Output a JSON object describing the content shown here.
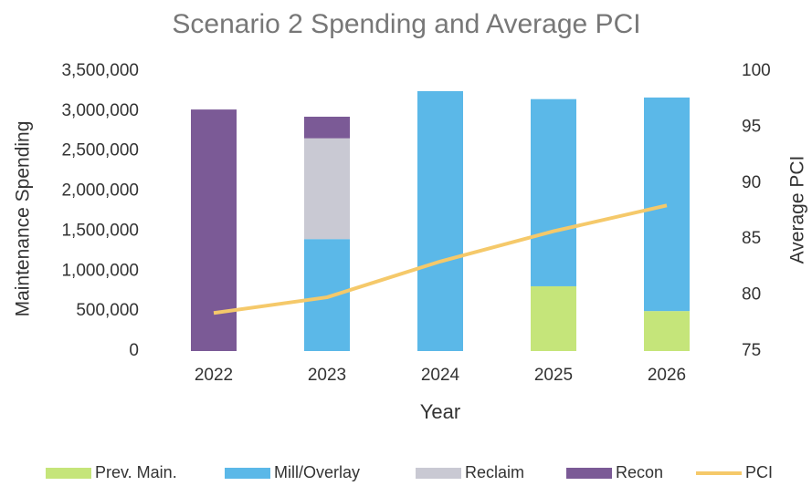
{
  "chart_data": {
    "type": "bar",
    "stacked": true,
    "title": "Scenario 2 Spending and Average PCI",
    "x_label": "Year",
    "y_label": "Maintenance Spending",
    "y2_label": "Average PCI",
    "categories": [
      "2022",
      "2023",
      "2024",
      "2025",
      "2026"
    ],
    "series": [
      {
        "name": "Prev. Main.",
        "color": "#c5e57a",
        "values": [
          0,
          0,
          0,
          810000,
          500000
        ]
      },
      {
        "name": "Mill/Overlay",
        "color": "#5bb8e8",
        "values": [
          0,
          1400000,
          3250000,
          2340000,
          2670000
        ]
      },
      {
        "name": "Reclaim",
        "color": "#c9c9d3",
        "values": [
          0,
          1260000,
          0,
          0,
          0
        ]
      },
      {
        "name": "Recon",
        "color": "#7b5a96",
        "values": [
          3020000,
          270000,
          0,
          0,
          0
        ]
      },
      {
        "name": "PCI",
        "color": "#f5c96a",
        "type": "line",
        "axis": "y2",
        "values": [
          78.4,
          79.8,
          83.0,
          85.7,
          88.0
        ]
      }
    ],
    "ylim": [
      0,
      3500000
    ],
    "yticks": [
      0,
      {
        "value": 500000,
        "label": "500,000"
      },
      {
        "value": 1000000,
        "label": "1,000,000"
      },
      {
        "value": 1500000,
        "label": "1,500,000"
      },
      {
        "value": 2000000,
        "label": "2,000,000"
      },
      {
        "value": 2500000,
        "label": "2,500,000"
      },
      {
        "value": 3000000,
        "label": "3,000,000"
      },
      {
        "value": 3500000,
        "label": "3,500,000"
      }
    ],
    "y2lim": [
      75,
      100
    ],
    "y2ticks": [
      75,
      80,
      85,
      90,
      95,
      100
    ],
    "grid": false,
    "legend": "bottom"
  }
}
